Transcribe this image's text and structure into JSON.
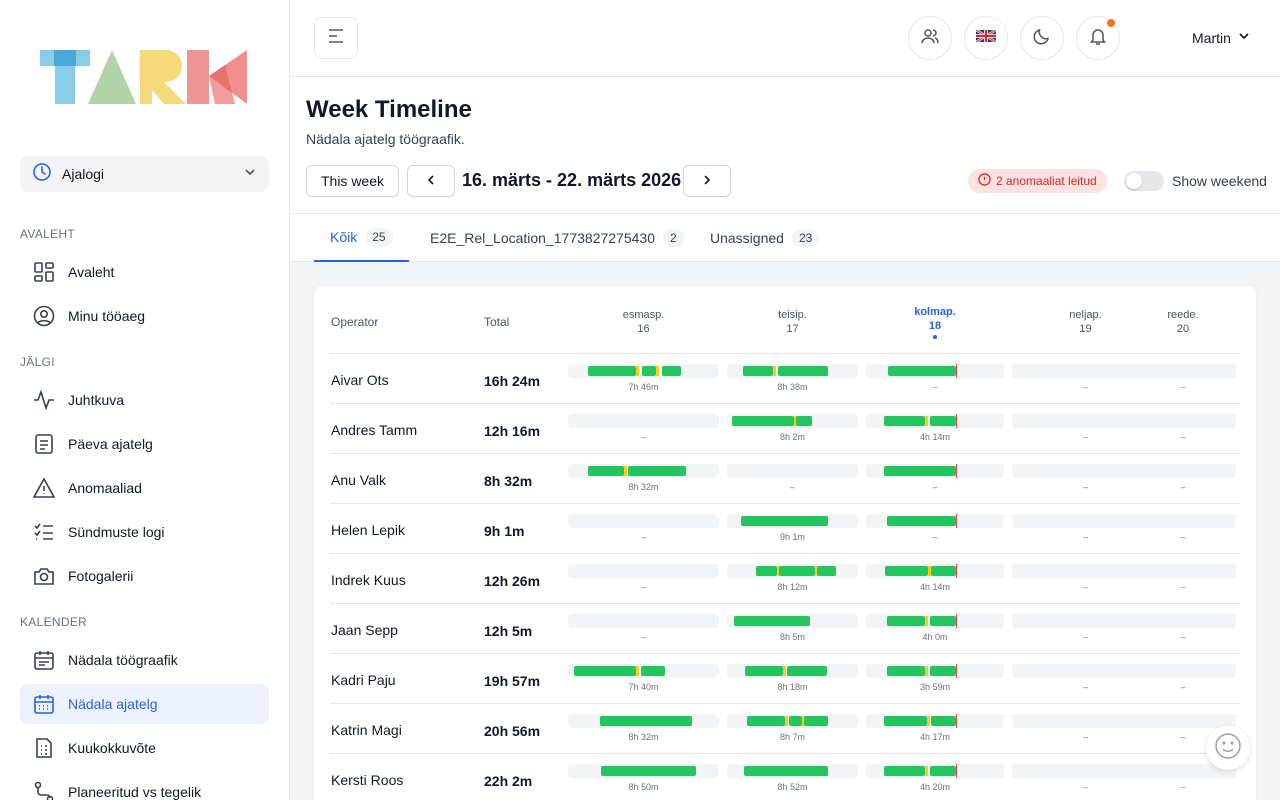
{
  "sidebar": {
    "module_label": "Ajalogi",
    "sections": [
      {
        "title": "AVALEHT",
        "items": [
          {
            "label": "Avaleht",
            "icon": "dashboard-icon"
          },
          {
            "label": "Minu tööaeg",
            "icon": "user-circle-icon"
          }
        ]
      },
      {
        "title": "JÄLGI",
        "items": [
          {
            "label": "Juhtkuva",
            "icon": "activity-icon"
          },
          {
            "label": "Päeva ajatelg",
            "icon": "document-icon"
          },
          {
            "label": "Anomaaliad",
            "icon": "warning-icon"
          },
          {
            "label": "Sündmuste logi",
            "icon": "checklist-icon"
          },
          {
            "label": "Fotogalerii",
            "icon": "camera-icon"
          }
        ]
      },
      {
        "title": "KALENDER",
        "items": [
          {
            "label": "Nädala töögraafik",
            "icon": "calendar-icon"
          },
          {
            "label": "Nädala ajatelg",
            "icon": "calendar-icon"
          },
          {
            "label": "Kuukokkuvõte",
            "icon": "report-icon"
          },
          {
            "label": "Planeeritud vs tegelik",
            "icon": "route-icon"
          }
        ]
      }
    ],
    "active_item": "Nädala ajatelg"
  },
  "topbar": {
    "user_name": "Martin",
    "notification_color": "#f97316"
  },
  "page": {
    "title": "Week Timeline",
    "subtitle": "Nädala ajatelg töögraafik.",
    "this_week_label": "This week",
    "date_range": "16. märts - 22. märts 2026",
    "anomalies_label": "2 anomaaliat leitud",
    "show_weekend_label": "Show weekend",
    "show_weekend": false
  },
  "tabs": [
    {
      "label": "Kõik",
      "count": "25"
    },
    {
      "label": "E2E_Rel_Location_1773827275430",
      "count": "2"
    },
    {
      "label": "Unassigned",
      "count": "23"
    }
  ],
  "table": {
    "operator_header": "Operator",
    "total_header": "Total",
    "days": [
      {
        "name": "esmasp.",
        "num": "16"
      },
      {
        "name": "teisip.",
        "num": "17"
      },
      {
        "name": "kolmap.",
        "num": "18",
        "today": true
      },
      {
        "name": "neljap.",
        "num": "19"
      },
      {
        "name": "reede.",
        "num": "20"
      }
    ],
    "rows": [
      {
        "name": "Aivar Ots",
        "total": "16h 24m",
        "days": [
          {
            "label": "7h 46m",
            "segs": [
              [
                0.13,
                0.45
              ],
              [
                0.49,
                0.58
              ],
              [
                0.62,
                0.75
              ]
            ]
          },
          {
            "label": "8h 38m",
            "segs": [
              [
                0.12,
                0.35
              ],
              [
                0.39,
                0.77
              ]
            ]
          },
          {
            "label": "–",
            "segs": [
              [
                0.16,
                0.65
              ]
            ],
            "now": 0.65
          },
          {
            "label": "–",
            "segs": []
          },
          {
            "label": "–",
            "segs": []
          }
        ]
      },
      {
        "name": "Andres Tamm",
        "total": "12h 16m",
        "days": [
          {
            "label": "–",
            "segs": []
          },
          {
            "label": "8h 2m",
            "segs": [
              [
                0.04,
                0.51
              ],
              [
                0.53,
                0.65
              ]
            ]
          },
          {
            "label": "4h 14m",
            "segs": [
              [
                0.13,
                0.43
              ],
              [
                0.46,
                0.65
              ]
            ],
            "now": 0.65
          },
          {
            "label": "–",
            "segs": []
          },
          {
            "label": "–",
            "segs": []
          }
        ]
      },
      {
        "name": "Anu Valk",
        "total": "8h 32m",
        "days": [
          {
            "label": "8h 32m",
            "segs": [
              [
                0.13,
                0.37
              ],
              [
                0.4,
                0.78
              ]
            ]
          },
          {
            "label": "–",
            "segs": []
          },
          {
            "label": "–",
            "segs": [
              [
                0.13,
                0.65
              ]
            ],
            "now": 0.65
          },
          {
            "label": "–",
            "segs": []
          },
          {
            "label": "–",
            "segs": []
          }
        ]
      },
      {
        "name": "Helen Lepik",
        "total": "9h 1m",
        "days": [
          {
            "label": "–",
            "segs": []
          },
          {
            "label": "9h 1m",
            "segs": [
              [
                0.11,
                0.77
              ]
            ]
          },
          {
            "label": "–",
            "segs": [
              [
                0.15,
                0.65
              ]
            ],
            "now": 0.65
          },
          {
            "label": "–",
            "segs": []
          },
          {
            "label": "–",
            "segs": []
          }
        ]
      },
      {
        "name": "Indrek Kuus",
        "total": "12h 26m",
        "days": [
          {
            "label": "–",
            "segs": []
          },
          {
            "label": "8h 12m",
            "segs": [
              [
                0.22,
                0.38
              ],
              [
                0.4,
                0.67
              ],
              [
                0.69,
                0.83
              ]
            ]
          },
          {
            "label": "4h 14m",
            "segs": [
              [
                0.14,
                0.45
              ],
              [
                0.47,
                0.65
              ]
            ],
            "now": 0.65
          },
          {
            "label": "–",
            "segs": []
          },
          {
            "label": "–",
            "segs": []
          }
        ]
      },
      {
        "name": "Jaan Sepp",
        "total": "12h 5m",
        "days": [
          {
            "label": "–",
            "segs": []
          },
          {
            "label": "8h 5m",
            "segs": [
              [
                0.05,
                0.63
              ]
            ]
          },
          {
            "label": "4h 0m",
            "segs": [
              [
                0.15,
                0.43
              ],
              [
                0.46,
                0.65
              ]
            ],
            "now": 0.65
          },
          {
            "label": "–",
            "segs": []
          },
          {
            "label": "–",
            "segs": []
          }
        ]
      },
      {
        "name": "Kadri Paju",
        "total": "19h 57m",
        "days": [
          {
            "label": "7h 40m",
            "segs": [
              [
                0.04,
                0.45
              ],
              [
                0.48,
                0.64
              ]
            ]
          },
          {
            "label": "8h 18m",
            "segs": [
              [
                0.14,
                0.43
              ],
              [
                0.46,
                0.76
              ]
            ]
          },
          {
            "label": "3h 59m",
            "segs": [
              [
                0.15,
                0.43
              ],
              [
                0.46,
                0.65
              ]
            ],
            "now": 0.65
          },
          {
            "label": "–",
            "segs": []
          },
          {
            "label": "–",
            "segs": []
          }
        ]
      },
      {
        "name": "Katrin Magi",
        "total": "20h 56m",
        "days": [
          {
            "label": "8h 32m",
            "segs": [
              [
                0.21,
                0.82
              ]
            ]
          },
          {
            "label": "8h 7m",
            "segs": [
              [
                0.15,
                0.44
              ],
              [
                0.47,
                0.57
              ],
              [
                0.59,
                0.77
              ]
            ]
          },
          {
            "label": "4h 17m",
            "segs": [
              [
                0.13,
                0.44
              ],
              [
                0.47,
                0.65
              ]
            ],
            "now": 0.65
          },
          {
            "label": "–",
            "segs": []
          },
          {
            "label": "–",
            "segs": []
          }
        ]
      },
      {
        "name": "Kersti Roos",
        "total": "22h 2m",
        "days": [
          {
            "label": "8h 50m",
            "segs": [
              [
                0.22,
                0.85
              ]
            ]
          },
          {
            "label": "8h 52m",
            "segs": [
              [
                0.13,
                0.77
              ]
            ]
          },
          {
            "label": "4h 20m",
            "segs": [
              [
                0.13,
                0.43
              ],
              [
                0.46,
                0.65
              ]
            ],
            "now": 0.65
          },
          {
            "label": "–",
            "segs": []
          },
          {
            "label": "–",
            "segs": []
          }
        ]
      }
    ]
  }
}
